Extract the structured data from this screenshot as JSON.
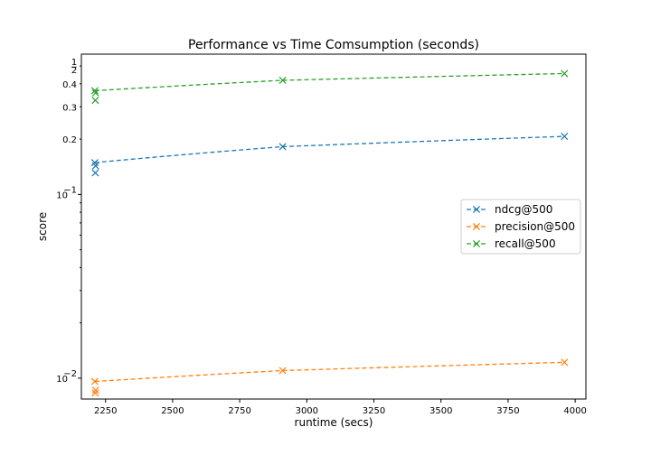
{
  "chart_data": {
    "type": "line",
    "title": "Performance vs Time Comsumption (seconds)",
    "xlabel": "runtime (secs)",
    "ylabel": "score",
    "xlim": [
      2160,
      4040
    ],
    "ylim": [
      0.0077,
      0.58
    ],
    "yscale": "log",
    "x_ticks": [
      2250,
      2500,
      2750,
      3000,
      3250,
      3500,
      3750,
      4000
    ],
    "x_tick_labels": [
      "2250",
      "2500",
      "2750",
      "3000",
      "3250",
      "3500",
      "3750",
      "4000"
    ],
    "y_major_ticks": [
      0.01,
      0.1
    ],
    "y_major_tick_labels": [
      "10",
      "10"
    ],
    "y_major_tick_exponents": [
      "−2",
      "−1"
    ],
    "y_minor_ticks": [
      0.02,
      0.03,
      0.04,
      0.05,
      0.06,
      0.07,
      0.08,
      0.09,
      0.2,
      0.3,
      0.4,
      0.5
    ],
    "y_minor_tick_labels": [
      {
        "value": 0.2,
        "label": "0.2"
      },
      {
        "value": 0.3,
        "label": "0.3"
      },
      {
        "value": 0.4,
        "label": "0.4"
      },
      {
        "value": 0.5,
        "label_num": "1",
        "label_den": "2"
      }
    ],
    "grid": false,
    "legend_position": "center-right",
    "series": [
      {
        "name": "ndcg@500",
        "color": "#1f77b4",
        "line_x": [
          2210,
          2910,
          3960
        ],
        "line_y": [
          0.149,
          0.182,
          0.207
        ],
        "points": [
          {
            "x": 2210,
            "y": 0.149
          },
          {
            "x": 2213,
            "y": 0.143
          },
          {
            "x": 2212,
            "y": 0.131
          },
          {
            "x": 2910,
            "y": 0.182
          },
          {
            "x": 3960,
            "y": 0.207
          }
        ]
      },
      {
        "name": "precision@500",
        "color": "#ff7f0e",
        "line_x": [
          2210,
          2910,
          3960
        ],
        "line_y": [
          0.0096,
          0.011,
          0.0122
        ],
        "points": [
          {
            "x": 2210,
            "y": 0.0096
          },
          {
            "x": 2213,
            "y": 0.0086
          },
          {
            "x": 2212,
            "y": 0.0083
          },
          {
            "x": 2910,
            "y": 0.011
          },
          {
            "x": 3960,
            "y": 0.0122
          }
        ]
      },
      {
        "name": "recall@500",
        "color": "#2ca02c",
        "line_x": [
          2210,
          2910,
          3960
        ],
        "line_y": [
          0.367,
          0.418,
          0.455
        ],
        "points": [
          {
            "x": 2210,
            "y": 0.367
          },
          {
            "x": 2213,
            "y": 0.357
          },
          {
            "x": 2212,
            "y": 0.325
          },
          {
            "x": 2910,
            "y": 0.418
          },
          {
            "x": 3960,
            "y": 0.455
          }
        ]
      }
    ]
  }
}
